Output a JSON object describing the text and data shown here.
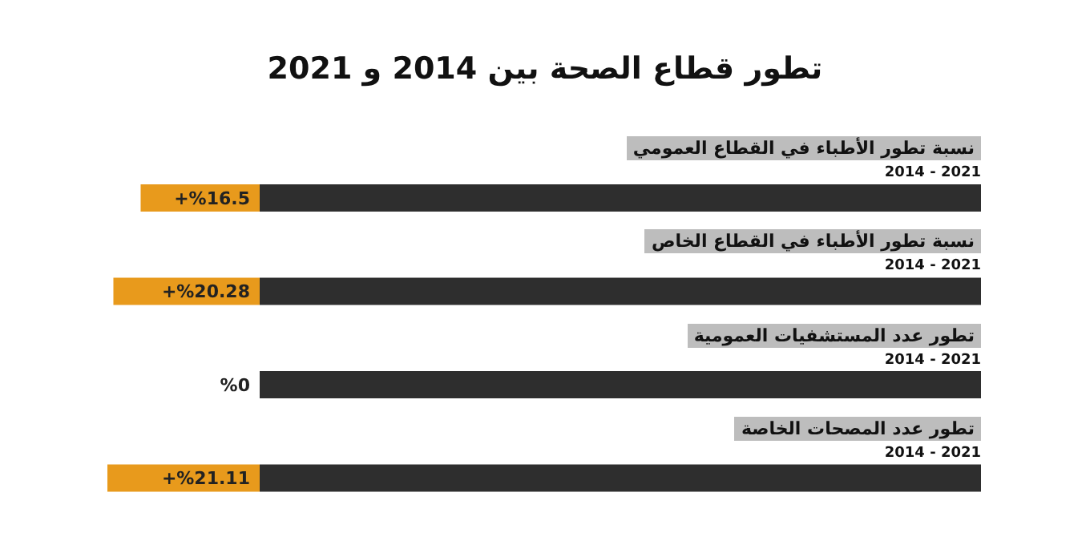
{
  "chart_data": {
    "type": "bar",
    "orientation": "horizontal",
    "stacked": true,
    "title": "تطور قطاع الصحة بين 2014 و 2021",
    "categories": [
      "نسبة تطور الأطباء في القطاع العمومي",
      "نسبة تطور الأطباء في القطاع الخاص",
      "تطور عدد المستشفيات العمومية",
      "تطور عدد المصحات الخاصة"
    ],
    "series": [
      {
        "color": "#2e2e2e",
        "values": [
          100,
          100,
          100,
          100
        ]
      },
      {
        "color": "#e89a1c",
        "values": [
          16.5,
          20.28,
          0,
          21.11
        ],
        "value_labels": [
          "+%16.5",
          "+%20.28",
          "%0",
          "+%21.11"
        ]
      }
    ],
    "annotations": [
      "2014 - 2021",
      "2014 - 2021",
      "2014 - 2021",
      "2014 - 2021"
    ],
    "tick_labels": false,
    "grid": false
  }
}
